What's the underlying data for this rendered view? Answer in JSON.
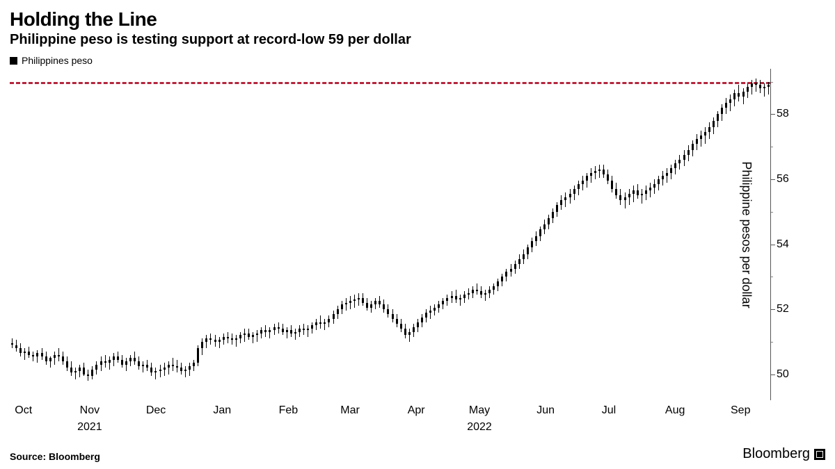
{
  "title": "Holding the Line",
  "subtitle": "Philippine peso is testing support at record-low 59 per dollar",
  "legend": {
    "label": "Philippines peso",
    "swatch_color": "#000000"
  },
  "source": "Source: Bloomberg",
  "brand": "Bloomberg",
  "chart": {
    "type": "candlestick",
    "background_color": "#ffffff",
    "series_color": "#000000",
    "candle_line_width": 1,
    "candle_body_width": 3,
    "y_axis": {
      "title": "Philippine pesos per dollar",
      "min": 49.2,
      "max": 59.4,
      "major_ticks": [
        50,
        52,
        54,
        56,
        58
      ],
      "minor_step": 1,
      "label_fontsize": 16,
      "title_fontsize": 18,
      "axis_color": "#555555"
    },
    "x_axis": {
      "label_fontsize": 16,
      "ticks": [
        {
          "label": "Oct",
          "pos": 0.018
        },
        {
          "label": "Nov",
          "pos": 0.105
        },
        {
          "label": "Dec",
          "pos": 0.192
        },
        {
          "label": "Jan",
          "pos": 0.279
        },
        {
          "label": "Feb",
          "pos": 0.366
        },
        {
          "label": "Mar",
          "pos": 0.447
        },
        {
          "label": "Apr",
          "pos": 0.534
        },
        {
          "label": "May",
          "pos": 0.617
        },
        {
          "label": "Jun",
          "pos": 0.704
        },
        {
          "label": "Jul",
          "pos": 0.787
        },
        {
          "label": "Aug",
          "pos": 0.874
        },
        {
          "label": "Sep",
          "pos": 0.96
        }
      ],
      "year_labels": [
        {
          "label": "2021",
          "pos": 0.105
        },
        {
          "label": "2022",
          "pos": 0.617
        }
      ]
    },
    "reference_line": {
      "value": 59.0,
      "color": "#b3263d",
      "dash": "5,5",
      "width": 3
    },
    "data": [
      {
        "o": 50.95,
        "h": 51.1,
        "l": 50.8,
        "c": 50.9
      },
      {
        "o": 50.9,
        "h": 51.05,
        "l": 50.7,
        "c": 50.8
      },
      {
        "o": 50.8,
        "h": 50.95,
        "l": 50.55,
        "c": 50.65
      },
      {
        "o": 50.65,
        "h": 50.8,
        "l": 50.45,
        "c": 50.7
      },
      {
        "o": 50.7,
        "h": 50.85,
        "l": 50.5,
        "c": 50.6
      },
      {
        "o": 50.6,
        "h": 50.7,
        "l": 50.4,
        "c": 50.55
      },
      {
        "o": 50.55,
        "h": 50.75,
        "l": 50.35,
        "c": 50.65
      },
      {
        "o": 50.65,
        "h": 50.8,
        "l": 50.45,
        "c": 50.55
      },
      {
        "o": 50.55,
        "h": 50.7,
        "l": 50.3,
        "c": 50.4
      },
      {
        "o": 50.4,
        "h": 50.55,
        "l": 50.2,
        "c": 50.5
      },
      {
        "o": 50.5,
        "h": 50.7,
        "l": 50.3,
        "c": 50.6
      },
      {
        "o": 50.6,
        "h": 50.8,
        "l": 50.4,
        "c": 50.55
      },
      {
        "o": 50.55,
        "h": 50.7,
        "l": 50.3,
        "c": 50.4
      },
      {
        "o": 50.4,
        "h": 50.55,
        "l": 50.1,
        "c": 50.2
      },
      {
        "o": 50.2,
        "h": 50.4,
        "l": 49.95,
        "c": 50.05
      },
      {
        "o": 50.05,
        "h": 50.2,
        "l": 49.85,
        "c": 50.1
      },
      {
        "o": 50.1,
        "h": 50.3,
        "l": 49.9,
        "c": 50.2
      },
      {
        "o": 50.2,
        "h": 50.35,
        "l": 49.95,
        "c": 50.0
      },
      {
        "o": 50.0,
        "h": 50.15,
        "l": 49.8,
        "c": 49.95
      },
      {
        "o": 49.95,
        "h": 50.25,
        "l": 49.85,
        "c": 50.15
      },
      {
        "o": 50.15,
        "h": 50.4,
        "l": 50.0,
        "c": 50.3
      },
      {
        "o": 50.3,
        "h": 50.55,
        "l": 50.1,
        "c": 50.4
      },
      {
        "o": 50.4,
        "h": 50.6,
        "l": 50.2,
        "c": 50.35
      },
      {
        "o": 50.35,
        "h": 50.55,
        "l": 50.15,
        "c": 50.45
      },
      {
        "o": 50.45,
        "h": 50.65,
        "l": 50.25,
        "c": 50.55
      },
      {
        "o": 50.55,
        "h": 50.7,
        "l": 50.35,
        "c": 50.45
      },
      {
        "o": 50.45,
        "h": 50.6,
        "l": 50.2,
        "c": 50.3
      },
      {
        "o": 50.3,
        "h": 50.5,
        "l": 50.1,
        "c": 50.4
      },
      {
        "o": 50.4,
        "h": 50.6,
        "l": 50.25,
        "c": 50.5
      },
      {
        "o": 50.5,
        "h": 50.7,
        "l": 50.3,
        "c": 50.4
      },
      {
        "o": 50.4,
        "h": 50.55,
        "l": 50.15,
        "c": 50.25
      },
      {
        "o": 50.25,
        "h": 50.4,
        "l": 50.05,
        "c": 50.3
      },
      {
        "o": 50.3,
        "h": 50.45,
        "l": 50.1,
        "c": 50.2
      },
      {
        "o": 50.2,
        "h": 50.35,
        "l": 49.95,
        "c": 50.05
      },
      {
        "o": 50.05,
        "h": 50.2,
        "l": 49.85,
        "c": 50.1
      },
      {
        "o": 50.1,
        "h": 50.3,
        "l": 49.9,
        "c": 50.15
      },
      {
        "o": 50.15,
        "h": 50.35,
        "l": 49.95,
        "c": 50.2
      },
      {
        "o": 50.2,
        "h": 50.4,
        "l": 50.0,
        "c": 50.3
      },
      {
        "o": 50.3,
        "h": 50.5,
        "l": 50.1,
        "c": 50.25
      },
      {
        "o": 50.25,
        "h": 50.45,
        "l": 50.05,
        "c": 50.2
      },
      {
        "o": 50.2,
        "h": 50.35,
        "l": 50.0,
        "c": 50.1
      },
      {
        "o": 50.1,
        "h": 50.25,
        "l": 49.9,
        "c": 50.15
      },
      {
        "o": 50.15,
        "h": 50.35,
        "l": 49.95,
        "c": 50.25
      },
      {
        "o": 50.25,
        "h": 50.45,
        "l": 50.1,
        "c": 50.35
      },
      {
        "o": 50.35,
        "h": 50.9,
        "l": 50.25,
        "c": 50.8
      },
      {
        "o": 50.8,
        "h": 51.1,
        "l": 50.6,
        "c": 51.0
      },
      {
        "o": 51.0,
        "h": 51.2,
        "l": 50.8,
        "c": 51.1
      },
      {
        "o": 51.1,
        "h": 51.25,
        "l": 50.9,
        "c": 51.05
      },
      {
        "o": 51.05,
        "h": 51.2,
        "l": 50.85,
        "c": 51.0
      },
      {
        "o": 51.0,
        "h": 51.15,
        "l": 50.8,
        "c": 51.05
      },
      {
        "o": 51.05,
        "h": 51.25,
        "l": 50.9,
        "c": 51.15
      },
      {
        "o": 51.15,
        "h": 51.3,
        "l": 50.95,
        "c": 51.1
      },
      {
        "o": 51.1,
        "h": 51.25,
        "l": 50.9,
        "c": 51.05
      },
      {
        "o": 51.05,
        "h": 51.2,
        "l": 50.85,
        "c": 51.1
      },
      {
        "o": 51.1,
        "h": 51.3,
        "l": 50.95,
        "c": 51.2
      },
      {
        "o": 51.2,
        "h": 51.4,
        "l": 51.0,
        "c": 51.25
      },
      {
        "o": 51.25,
        "h": 51.4,
        "l": 51.05,
        "c": 51.15
      },
      {
        "o": 51.15,
        "h": 51.3,
        "l": 50.95,
        "c": 51.2
      },
      {
        "o": 51.2,
        "h": 51.35,
        "l": 51.0,
        "c": 51.25
      },
      {
        "o": 51.25,
        "h": 51.45,
        "l": 51.1,
        "c": 51.35
      },
      {
        "o": 51.35,
        "h": 51.5,
        "l": 51.15,
        "c": 51.3
      },
      {
        "o": 51.3,
        "h": 51.45,
        "l": 51.1,
        "c": 51.35
      },
      {
        "o": 51.35,
        "h": 51.55,
        "l": 51.2,
        "c": 51.45
      },
      {
        "o": 51.45,
        "h": 51.6,
        "l": 51.25,
        "c": 51.4
      },
      {
        "o": 51.4,
        "h": 51.55,
        "l": 51.2,
        "c": 51.3
      },
      {
        "o": 51.3,
        "h": 51.45,
        "l": 51.1,
        "c": 51.35
      },
      {
        "o": 51.35,
        "h": 51.5,
        "l": 51.15,
        "c": 51.25
      },
      {
        "o": 51.25,
        "h": 51.4,
        "l": 51.05,
        "c": 51.3
      },
      {
        "o": 51.3,
        "h": 51.5,
        "l": 51.15,
        "c": 51.4
      },
      {
        "o": 51.4,
        "h": 51.55,
        "l": 51.2,
        "c": 51.35
      },
      {
        "o": 51.35,
        "h": 51.5,
        "l": 51.15,
        "c": 51.4
      },
      {
        "o": 51.4,
        "h": 51.6,
        "l": 51.25,
        "c": 51.5
      },
      {
        "o": 51.5,
        "h": 51.7,
        "l": 51.35,
        "c": 51.6
      },
      {
        "o": 51.6,
        "h": 51.8,
        "l": 51.4,
        "c": 51.55
      },
      {
        "o": 51.55,
        "h": 51.7,
        "l": 51.35,
        "c": 51.6
      },
      {
        "o": 51.6,
        "h": 51.8,
        "l": 51.45,
        "c": 51.7
      },
      {
        "o": 51.7,
        "h": 51.95,
        "l": 51.55,
        "c": 51.85
      },
      {
        "o": 51.85,
        "h": 52.1,
        "l": 51.7,
        "c": 52.0
      },
      {
        "o": 52.0,
        "h": 52.25,
        "l": 51.85,
        "c": 52.15
      },
      {
        "o": 52.15,
        "h": 52.35,
        "l": 51.95,
        "c": 52.2
      },
      {
        "o": 52.2,
        "h": 52.4,
        "l": 52.0,
        "c": 52.25
      },
      {
        "o": 52.25,
        "h": 52.45,
        "l": 52.05,
        "c": 52.3
      },
      {
        "o": 52.3,
        "h": 52.5,
        "l": 52.1,
        "c": 52.35
      },
      {
        "o": 52.35,
        "h": 52.5,
        "l": 52.1,
        "c": 52.2
      },
      {
        "o": 52.2,
        "h": 52.35,
        "l": 51.95,
        "c": 52.05
      },
      {
        "o": 52.05,
        "h": 52.25,
        "l": 51.9,
        "c": 52.15
      },
      {
        "o": 52.15,
        "h": 52.35,
        "l": 52.0,
        "c": 52.25
      },
      {
        "o": 52.25,
        "h": 52.4,
        "l": 52.05,
        "c": 52.15
      },
      {
        "o": 52.15,
        "h": 52.3,
        "l": 51.9,
        "c": 52.0
      },
      {
        "o": 52.0,
        "h": 52.15,
        "l": 51.75,
        "c": 51.85
      },
      {
        "o": 51.85,
        "h": 52.0,
        "l": 51.6,
        "c": 51.7
      },
      {
        "o": 51.7,
        "h": 51.85,
        "l": 51.45,
        "c": 51.55
      },
      {
        "o": 51.55,
        "h": 51.7,
        "l": 51.3,
        "c": 51.4
      },
      {
        "o": 51.4,
        "h": 51.55,
        "l": 51.1,
        "c": 51.2
      },
      {
        "o": 51.2,
        "h": 51.4,
        "l": 51.0,
        "c": 51.3
      },
      {
        "o": 51.3,
        "h": 51.55,
        "l": 51.15,
        "c": 51.45
      },
      {
        "o": 51.45,
        "h": 51.7,
        "l": 51.3,
        "c": 51.6
      },
      {
        "o": 51.6,
        "h": 51.85,
        "l": 51.45,
        "c": 51.75
      },
      {
        "o": 51.75,
        "h": 52.0,
        "l": 51.6,
        "c": 51.9
      },
      {
        "o": 51.9,
        "h": 52.1,
        "l": 51.7,
        "c": 51.95
      },
      {
        "o": 51.95,
        "h": 52.15,
        "l": 51.8,
        "c": 52.05
      },
      {
        "o": 52.05,
        "h": 52.25,
        "l": 51.9,
        "c": 52.15
      },
      {
        "o": 52.15,
        "h": 52.35,
        "l": 52.0,
        "c": 52.25
      },
      {
        "o": 52.25,
        "h": 52.45,
        "l": 52.1,
        "c": 52.35
      },
      {
        "o": 52.35,
        "h": 52.55,
        "l": 52.2,
        "c": 52.4
      },
      {
        "o": 52.4,
        "h": 52.6,
        "l": 52.2,
        "c": 52.3
      },
      {
        "o": 52.3,
        "h": 52.45,
        "l": 52.1,
        "c": 52.35
      },
      {
        "o": 52.35,
        "h": 52.55,
        "l": 52.2,
        "c": 52.45
      },
      {
        "o": 52.45,
        "h": 52.65,
        "l": 52.3,
        "c": 52.5
      },
      {
        "o": 52.5,
        "h": 52.7,
        "l": 52.35,
        "c": 52.6
      },
      {
        "o": 52.6,
        "h": 52.8,
        "l": 52.45,
        "c": 52.55
      },
      {
        "o": 52.55,
        "h": 52.7,
        "l": 52.35,
        "c": 52.45
      },
      {
        "o": 52.45,
        "h": 52.6,
        "l": 52.25,
        "c": 52.5
      },
      {
        "o": 52.5,
        "h": 52.7,
        "l": 52.35,
        "c": 52.6
      },
      {
        "o": 52.6,
        "h": 52.8,
        "l": 52.45,
        "c": 52.7
      },
      {
        "o": 52.7,
        "h": 52.95,
        "l": 52.55,
        "c": 52.85
      },
      {
        "o": 52.85,
        "h": 53.1,
        "l": 52.7,
        "c": 53.0
      },
      {
        "o": 53.0,
        "h": 53.25,
        "l": 52.85,
        "c": 53.15
      },
      {
        "o": 53.15,
        "h": 53.4,
        "l": 53.0,
        "c": 53.25
      },
      {
        "o": 53.25,
        "h": 53.5,
        "l": 53.1,
        "c": 53.4
      },
      {
        "o": 53.4,
        "h": 53.7,
        "l": 53.25,
        "c": 53.55
      },
      {
        "o": 53.55,
        "h": 53.85,
        "l": 53.4,
        "c": 53.7
      },
      {
        "o": 53.7,
        "h": 54.0,
        "l": 53.55,
        "c": 53.9
      },
      {
        "o": 53.9,
        "h": 54.2,
        "l": 53.75,
        "c": 54.1
      },
      {
        "o": 54.1,
        "h": 54.4,
        "l": 53.95,
        "c": 54.25
      },
      {
        "o": 54.25,
        "h": 54.55,
        "l": 54.1,
        "c": 54.45
      },
      {
        "o": 54.45,
        "h": 54.75,
        "l": 54.3,
        "c": 54.6
      },
      {
        "o": 54.6,
        "h": 54.9,
        "l": 54.45,
        "c": 54.8
      },
      {
        "o": 54.8,
        "h": 55.1,
        "l": 54.65,
        "c": 55.0
      },
      {
        "o": 55.0,
        "h": 55.3,
        "l": 54.85,
        "c": 55.2
      },
      {
        "o": 55.2,
        "h": 55.5,
        "l": 55.05,
        "c": 55.35
      },
      {
        "o": 55.35,
        "h": 55.6,
        "l": 55.15,
        "c": 55.45
      },
      {
        "o": 55.45,
        "h": 55.7,
        "l": 55.25,
        "c": 55.55
      },
      {
        "o": 55.55,
        "h": 55.8,
        "l": 55.35,
        "c": 55.7
      },
      {
        "o": 55.7,
        "h": 55.95,
        "l": 55.5,
        "c": 55.85
      },
      {
        "o": 55.85,
        "h": 56.1,
        "l": 55.65,
        "c": 55.95
      },
      {
        "o": 55.95,
        "h": 56.2,
        "l": 55.75,
        "c": 56.1
      },
      {
        "o": 56.1,
        "h": 56.35,
        "l": 55.9,
        "c": 56.2
      },
      {
        "o": 56.2,
        "h": 56.4,
        "l": 56.0,
        "c": 56.25
      },
      {
        "o": 56.25,
        "h": 56.45,
        "l": 56.05,
        "c": 56.3
      },
      {
        "o": 56.3,
        "h": 56.45,
        "l": 56.05,
        "c": 56.15
      },
      {
        "o": 56.15,
        "h": 56.3,
        "l": 55.85,
        "c": 55.95
      },
      {
        "o": 55.95,
        "h": 56.1,
        "l": 55.6,
        "c": 55.7
      },
      {
        "o": 55.7,
        "h": 55.9,
        "l": 55.4,
        "c": 55.5
      },
      {
        "o": 55.5,
        "h": 55.7,
        "l": 55.2,
        "c": 55.35
      },
      {
        "o": 55.35,
        "h": 55.6,
        "l": 55.1,
        "c": 55.45
      },
      {
        "o": 55.45,
        "h": 55.7,
        "l": 55.2,
        "c": 55.55
      },
      {
        "o": 55.55,
        "h": 55.8,
        "l": 55.3,
        "c": 55.65
      },
      {
        "o": 55.65,
        "h": 55.85,
        "l": 55.4,
        "c": 55.5
      },
      {
        "o": 55.5,
        "h": 55.7,
        "l": 55.25,
        "c": 55.55
      },
      {
        "o": 55.55,
        "h": 55.8,
        "l": 55.35,
        "c": 55.65
      },
      {
        "o": 55.65,
        "h": 55.9,
        "l": 55.45,
        "c": 55.75
      },
      {
        "o": 55.75,
        "h": 56.0,
        "l": 55.55,
        "c": 55.85
      },
      {
        "o": 55.85,
        "h": 56.1,
        "l": 55.65,
        "c": 56.0
      },
      {
        "o": 56.0,
        "h": 56.25,
        "l": 55.8,
        "c": 56.1
      },
      {
        "o": 56.1,
        "h": 56.35,
        "l": 55.9,
        "c": 56.2
      },
      {
        "o": 56.2,
        "h": 56.45,
        "l": 56.0,
        "c": 56.35
      },
      {
        "o": 56.35,
        "h": 56.6,
        "l": 56.15,
        "c": 56.5
      },
      {
        "o": 56.5,
        "h": 56.75,
        "l": 56.3,
        "c": 56.6
      },
      {
        "o": 56.6,
        "h": 56.9,
        "l": 56.4,
        "c": 56.75
      },
      {
        "o": 56.75,
        "h": 57.05,
        "l": 56.55,
        "c": 56.9
      },
      {
        "o": 56.9,
        "h": 57.2,
        "l": 56.7,
        "c": 57.1
      },
      {
        "o": 57.1,
        "h": 57.4,
        "l": 56.9,
        "c": 57.25
      },
      {
        "o": 57.25,
        "h": 57.5,
        "l": 57.0,
        "c": 57.35
      },
      {
        "o": 57.35,
        "h": 57.6,
        "l": 57.1,
        "c": 57.45
      },
      {
        "o": 57.45,
        "h": 57.75,
        "l": 57.25,
        "c": 57.6
      },
      {
        "o": 57.6,
        "h": 57.9,
        "l": 57.4,
        "c": 57.8
      },
      {
        "o": 57.8,
        "h": 58.1,
        "l": 57.6,
        "c": 58.0
      },
      {
        "o": 58.0,
        "h": 58.3,
        "l": 57.8,
        "c": 58.2
      },
      {
        "o": 58.2,
        "h": 58.5,
        "l": 58.0,
        "c": 58.35
      },
      {
        "o": 58.35,
        "h": 58.6,
        "l": 58.1,
        "c": 58.45
      },
      {
        "o": 58.45,
        "h": 58.75,
        "l": 58.25,
        "c": 58.65
      },
      {
        "o": 58.65,
        "h": 58.9,
        "l": 58.4,
        "c": 58.55
      },
      {
        "o": 58.55,
        "h": 58.8,
        "l": 58.3,
        "c": 58.7
      },
      {
        "o": 58.7,
        "h": 58.95,
        "l": 58.5,
        "c": 58.85
      },
      {
        "o": 58.85,
        "h": 59.05,
        "l": 58.6,
        "c": 58.95
      },
      {
        "o": 58.95,
        "h": 59.1,
        "l": 58.7,
        "c": 58.9
      },
      {
        "o": 58.9,
        "h": 59.05,
        "l": 58.65,
        "c": 58.8
      },
      {
        "o": 58.8,
        "h": 58.95,
        "l": 58.55,
        "c": 58.85
      },
      {
        "o": 58.85,
        "h": 59.0,
        "l": 58.6,
        "c": 58.9
      }
    ]
  }
}
